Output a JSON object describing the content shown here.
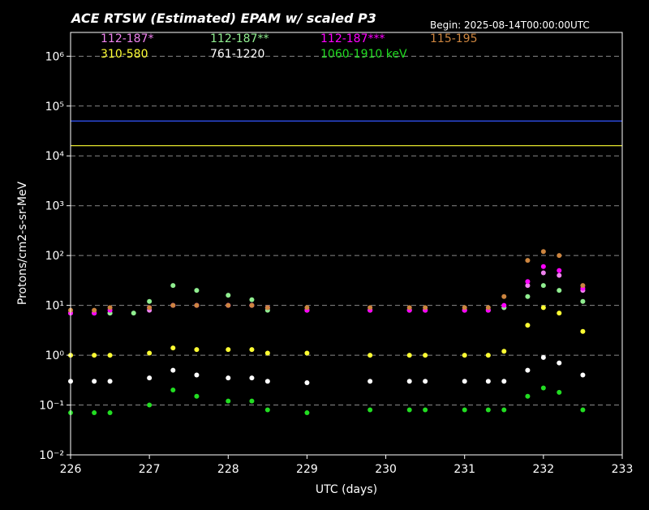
{
  "chart_data": {
    "type": "scatter",
    "title": "ACE RTSW (Estimated) EPAM w/ scaled P3",
    "begin_label": "Begin: 2025-08-14T00:00:00UTC",
    "xlabel": "UTC (days)",
    "ylabel": "Protons/cm2-s-sr-MeV",
    "xlim": [
      226,
      233
    ],
    "ylim": [
      0.01,
      3000000
    ],
    "yscale": "log",
    "x_ticks": [
      "226",
      "227",
      "228",
      "229",
      "230",
      "231",
      "232",
      "233"
    ],
    "y_ticks": [
      {
        "value": 0.01,
        "label": "10⁻²"
      },
      {
        "value": 0.1,
        "label": "10⁻¹"
      },
      {
        "value": 1,
        "label": "10⁰"
      },
      {
        "value": 10,
        "label": "10¹"
      },
      {
        "value": 100,
        "label": "10²"
      },
      {
        "value": 1000,
        "label": "10³"
      },
      {
        "value": 10000,
        "label": "10⁴"
      },
      {
        "value": 100000,
        "label": "10⁵"
      },
      {
        "value": 1000000,
        "label": "10⁶"
      }
    ],
    "grid": "horizontal dashed",
    "legend_position": "top",
    "thresholds": [
      {
        "value": 50000,
        "color": "#3355ff"
      },
      {
        "value": 16000,
        "color": "#ffff33"
      }
    ],
    "series": [
      {
        "name": "112-187*",
        "color": "#ee82ee",
        "x": [
          226.0,
          226.3,
          226.5,
          227.0,
          227.3,
          227.6,
          228.0,
          228.3,
          228.5,
          229.0,
          229.8,
          230.3,
          230.5,
          231.0,
          231.3,
          231.5,
          231.8,
          232.0,
          232.2,
          232.5
        ],
        "y": [
          7,
          7,
          7,
          8,
          10,
          10,
          10,
          10,
          9,
          8,
          8,
          8,
          8,
          8,
          8,
          9,
          25,
          45,
          40,
          20
        ]
      },
      {
        "name": "112-187**",
        "color": "#90ee90",
        "x": [
          226.0,
          226.3,
          226.5,
          226.8,
          227.0,
          227.3,
          227.6,
          228.0,
          228.3,
          228.5,
          229.0,
          229.8,
          230.3,
          230.5,
          231.0,
          231.3,
          231.5,
          231.8,
          232.0,
          232.2,
          232.5
        ],
        "y": [
          7,
          7,
          7,
          7,
          12,
          25,
          20,
          16,
          13,
          8,
          8,
          8,
          8,
          8,
          8,
          8,
          9,
          15,
          25,
          20,
          12
        ]
      },
      {
        "name": "112-187***",
        "color": "#ff00ff",
        "x": [
          226.0,
          226.3,
          226.5,
          227.0,
          227.3,
          227.6,
          228.0,
          228.3,
          228.5,
          229.0,
          229.8,
          230.3,
          230.5,
          231.0,
          231.3,
          231.5,
          231.8,
          232.0,
          232.2,
          232.5
        ],
        "y": [
          7,
          7,
          8,
          9,
          10,
          10,
          10,
          10,
          9,
          8,
          8,
          8,
          8,
          8,
          8,
          10,
          30,
          60,
          50,
          22
        ]
      },
      {
        "name": "115-195",
        "color": "#cd853f",
        "x": [
          226.0,
          226.3,
          226.5,
          227.0,
          227.3,
          227.6,
          228.0,
          228.3,
          228.5,
          229.0,
          229.8,
          230.3,
          230.5,
          231.0,
          231.3,
          231.5,
          231.8,
          232.0,
          232.2,
          232.5
        ],
        "y": [
          8,
          8,
          9,
          9,
          10,
          10,
          10,
          10,
          9,
          9,
          9,
          9,
          9,
          9,
          9,
          15,
          80,
          120,
          100,
          25
        ]
      },
      {
        "name": "310-580",
        "color": "#ffff33",
        "x": [
          226.0,
          226.3,
          226.5,
          227.0,
          227.3,
          227.6,
          228.0,
          228.3,
          228.5,
          229.0,
          229.8,
          230.3,
          230.5,
          231.0,
          231.3,
          231.5,
          231.8,
          232.0,
          232.2,
          232.5
        ],
        "y": [
          1.0,
          1.0,
          1.0,
          1.1,
          1.4,
          1.3,
          1.3,
          1.3,
          1.1,
          1.1,
          1.0,
          1.0,
          1.0,
          1.0,
          1.0,
          1.2,
          4,
          9,
          7,
          3
        ]
      },
      {
        "name": "761-1220",
        "color": "#ffffff",
        "x": [
          226.0,
          226.3,
          226.5,
          227.0,
          227.3,
          227.6,
          228.0,
          228.3,
          228.5,
          229.0,
          229.8,
          230.3,
          230.5,
          231.0,
          231.3,
          231.5,
          231.8,
          232.0,
          232.2,
          232.5
        ],
        "y": [
          0.3,
          0.3,
          0.3,
          0.35,
          0.5,
          0.4,
          0.35,
          0.35,
          0.3,
          0.28,
          0.3,
          0.3,
          0.3,
          0.3,
          0.3,
          0.3,
          0.5,
          0.9,
          0.7,
          0.4
        ]
      },
      {
        "name": "1060-1910 keV",
        "color": "#22dd22",
        "x": [
          226.0,
          226.3,
          226.5,
          227.0,
          227.3,
          227.6,
          228.0,
          228.3,
          228.5,
          229.0,
          229.8,
          230.3,
          230.5,
          231.0,
          231.3,
          231.5,
          231.8,
          232.0,
          232.2,
          232.5
        ],
        "y": [
          0.07,
          0.07,
          0.07,
          0.1,
          0.2,
          0.15,
          0.12,
          0.12,
          0.08,
          0.07,
          0.08,
          0.08,
          0.08,
          0.08,
          0.08,
          0.08,
          0.15,
          0.22,
          0.18,
          0.08
        ]
      }
    ]
  }
}
